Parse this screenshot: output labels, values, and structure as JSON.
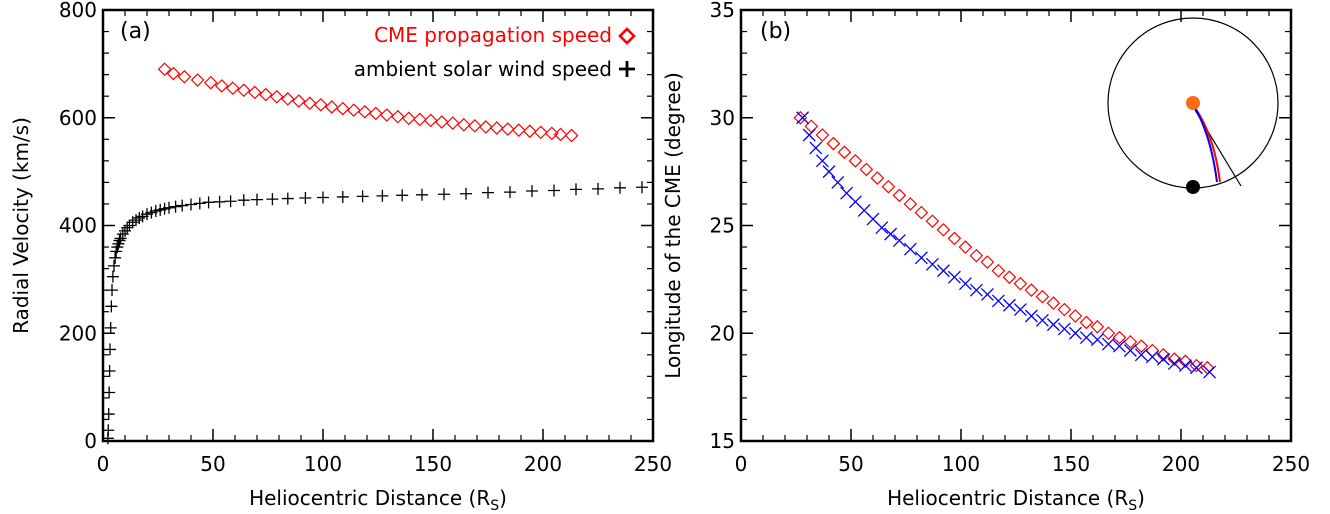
{
  "chart_data": [
    {
      "type": "scatter",
      "panel_label": "(a)",
      "xlabel": "Heliocentric Distance (R",
      "xlabel_sub": "S",
      "xlabel_close": ")",
      "ylabel": "Radial Velocity (km/s)",
      "xlim": [
        0,
        250
      ],
      "ylim": [
        0,
        800
      ],
      "xticks": [
        "0",
        "50",
        "100",
        "150",
        "200",
        "250"
      ],
      "yticks": [
        "0",
        "200",
        "400",
        "600",
        "800"
      ],
      "legend_position": "top-right",
      "legend": [
        {
          "label": "CME propagation speed",
          "marker": "diamond",
          "color": "#ff0000"
        },
        {
          "label": "ambient solar wind speed",
          "marker": "plus",
          "color": "#000000"
        }
      ],
      "series": [
        {
          "name": "CME propagation speed",
          "marker": "diamond",
          "color": "#ff0000",
          "x": [
            28,
            32,
            37,
            43,
            49,
            54,
            59,
            64,
            69,
            74,
            79,
            84,
            89,
            94,
            99,
            104,
            109,
            114,
            119,
            124,
            129,
            134,
            139,
            144,
            149,
            154,
            159,
            164,
            169,
            174,
            179,
            184,
            189,
            194,
            199,
            204,
            208,
            213
          ],
          "y": [
            690,
            682,
            676,
            670,
            665,
            659,
            655,
            651,
            647,
            643,
            639,
            635,
            631,
            627,
            624,
            620,
            617,
            614,
            611,
            608,
            605,
            602,
            599,
            597,
            595,
            592,
            590,
            587,
            585,
            583,
            581,
            579,
            577,
            575,
            573,
            571,
            569,
            567
          ]
        },
        {
          "name": "ambient solar wind speed",
          "marker": "plus",
          "color": "#000000",
          "x": [
            2.2,
            2.4,
            2.6,
            2.8,
            3.0,
            3.2,
            3.5,
            3.8,
            4.1,
            4.5,
            5.0,
            5.5,
            6.0,
            6.5,
            7.0,
            7.5,
            8.0,
            9.0,
            10.0,
            11.0,
            12.0,
            13.5,
            15.0,
            16.5,
            18.0,
            20.0,
            22.0,
            24.0,
            26.0,
            28.0,
            30.0,
            33.0,
            36.0,
            40.0,
            44.0,
            48.0,
            53.0,
            58.0,
            64.0,
            70.0,
            77.0,
            84.0,
            92.0,
            100.0,
            109.0,
            118.0,
            127.0,
            136.0,
            145.0,
            155.0,
            165.0,
            175.0,
            185.0,
            195.0,
            205.0,
            215.0,
            225.0,
            235.0,
            245.0
          ],
          "y": [
            5,
            20,
            50,
            90,
            130,
            170,
            210,
            250,
            280,
            305,
            325,
            340,
            352,
            360,
            366,
            372,
            376,
            384,
            390,
            396,
            400,
            406,
            410,
            414,
            417,
            421,
            424,
            427,
            429,
            431,
            433,
            435,
            437,
            439,
            441,
            443,
            444,
            445,
            447,
            448,
            449,
            450,
            451,
            452,
            453,
            454,
            455,
            456,
            457,
            458,
            459,
            461,
            462,
            464,
            465,
            467,
            468,
            470,
            471
          ]
        }
      ]
    },
    {
      "type": "scatter",
      "panel_label": "(b)",
      "xlabel": "Heliocentric Distance (R",
      "xlabel_sub": "S",
      "xlabel_close": ")",
      "ylabel": "Longitude of the CME (degree)",
      "xlim": [
        0,
        250
      ],
      "ylim": [
        15,
        35
      ],
      "xticks": [
        "0",
        "50",
        "100",
        "150",
        "200",
        "250"
      ],
      "yticks": [
        "15",
        "20",
        "25",
        "30",
        "35"
      ],
      "series": [
        {
          "marker": "diamond",
          "color": "#ff0000",
          "x": [
            27,
            32,
            37,
            42,
            47,
            52,
            57,
            62,
            67,
            72,
            77,
            82,
            87,
            92,
            97,
            102,
            107,
            112,
            117,
            122,
            127,
            132,
            137,
            142,
            147,
            152,
            157,
            162,
            167,
            172,
            177,
            182,
            187,
            192,
            197,
            202,
            207,
            212
          ],
          "y": [
            30.0,
            29.6,
            29.2,
            28.8,
            28.4,
            28.0,
            27.6,
            27.2,
            26.8,
            26.4,
            26.0,
            25.6,
            25.2,
            24.8,
            24.4,
            24.0,
            23.6,
            23.3,
            22.9,
            22.6,
            22.3,
            22.0,
            21.7,
            21.4,
            21.1,
            20.8,
            20.5,
            20.3,
            20.0,
            19.8,
            19.6,
            19.4,
            19.2,
            19.0,
            18.8,
            18.7,
            18.5,
            18.4
          ]
        },
        {
          "marker": "x",
          "color": "#0000ff",
          "x": [
            28,
            31,
            34,
            37,
            40,
            44,
            48,
            52,
            56,
            60,
            64,
            68,
            72,
            77,
            82,
            87,
            92,
            97,
            102,
            107,
            112,
            117,
            122,
            127,
            132,
            137,
            142,
            147,
            152,
            157,
            162,
            167,
            172,
            177,
            182,
            187,
            192,
            197,
            202,
            207,
            213
          ],
          "y": [
            30.0,
            29.2,
            28.6,
            28.0,
            27.5,
            27.0,
            26.5,
            26.1,
            25.7,
            25.3,
            24.9,
            24.6,
            24.3,
            23.9,
            23.5,
            23.2,
            22.9,
            22.6,
            22.3,
            22.0,
            21.8,
            21.5,
            21.3,
            21.1,
            20.8,
            20.6,
            20.4,
            20.2,
            20.0,
            19.8,
            19.7,
            19.5,
            19.4,
            19.2,
            19.0,
            18.9,
            18.8,
            18.6,
            18.5,
            18.4,
            18.2
          ]
        }
      ],
      "inset": {
        "circle_color": "#000000",
        "sun_color": "#ff6a13",
        "earth_color": "#000000",
        "trajectory_colors": [
          "#ff0000",
          "#0000ff",
          "#000000"
        ]
      }
    }
  ]
}
